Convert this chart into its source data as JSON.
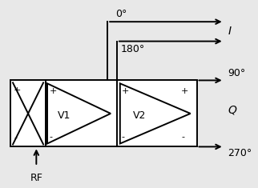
{
  "bg_color": "#e8e8e8",
  "line_color": "black",
  "labels": {
    "deg0": "0°",
    "deg180": "180°",
    "deg90": "90°",
    "deg270": "270°",
    "I": "I",
    "Q": "Q",
    "RF": "RF",
    "V1": "V1",
    "V2": "V2"
  },
  "figsize": [
    3.22,
    2.35
  ],
  "dpi": 100
}
